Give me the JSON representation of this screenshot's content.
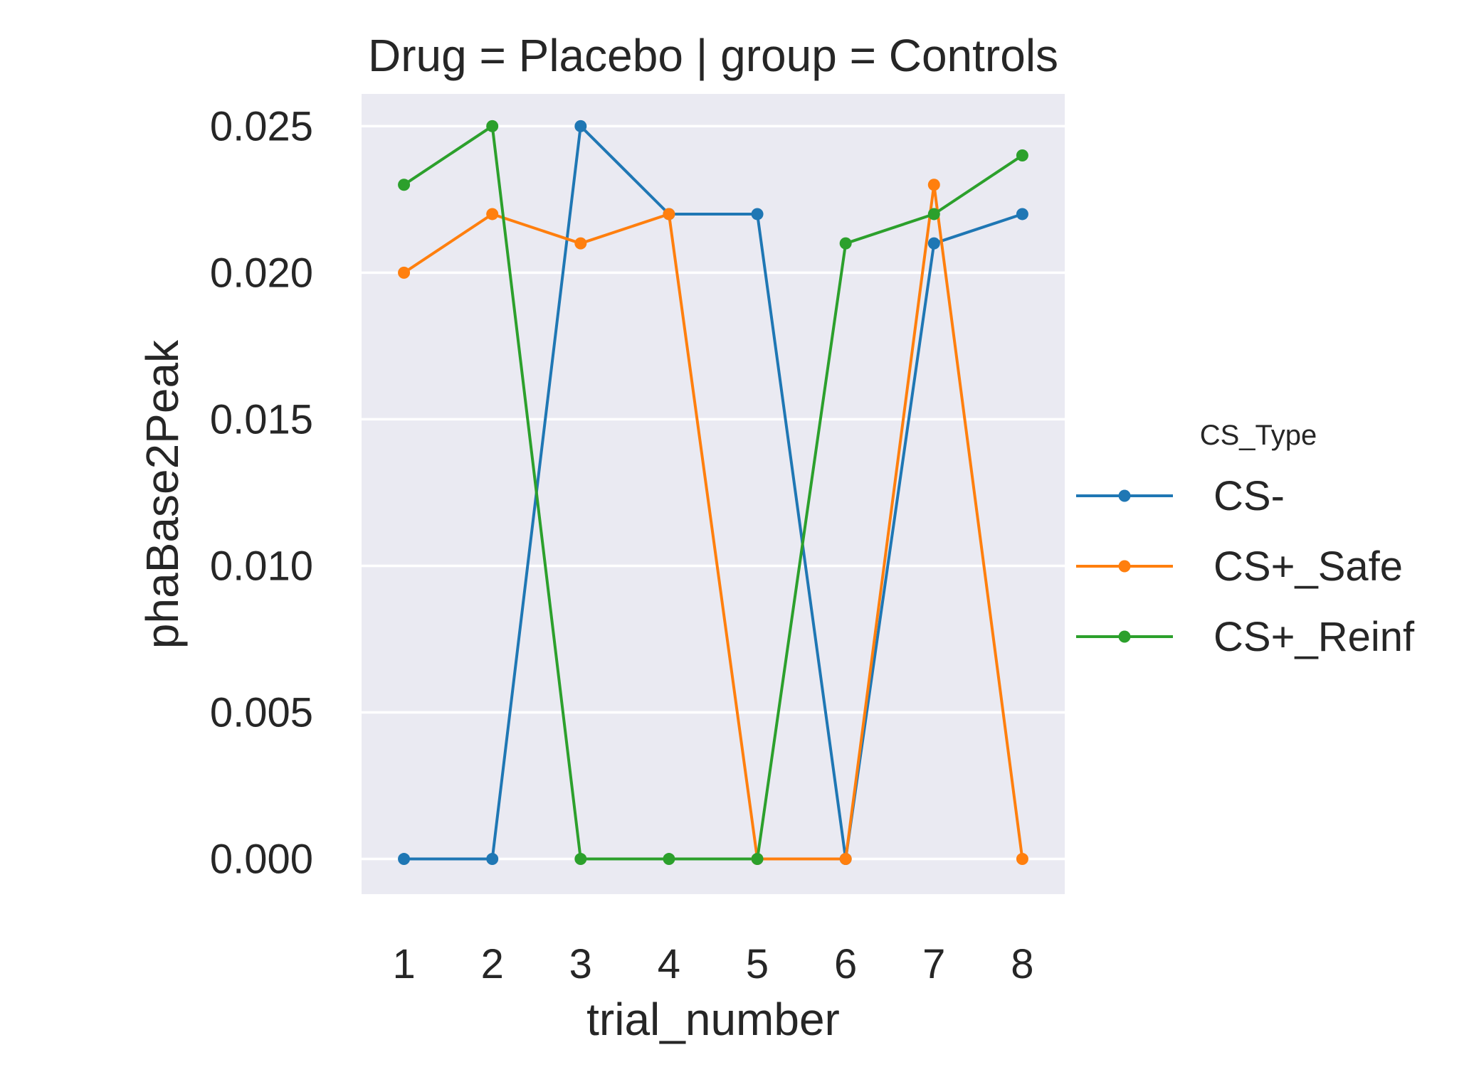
{
  "chart_data": {
    "type": "line",
    "title": "Drug = Placebo | group = Controls",
    "xlabel": "trial_number",
    "ylabel": "phaBase2Peak",
    "x": [
      1,
      2,
      3,
      4,
      5,
      6,
      7,
      8
    ],
    "xticks": [
      "1",
      "2",
      "3",
      "4",
      "5",
      "6",
      "7",
      "8"
    ],
    "yticks": [
      "0.000",
      "0.005",
      "0.010",
      "0.015",
      "0.020",
      "0.025"
    ],
    "ytick_values": [
      0,
      0.005,
      0.01,
      0.015,
      0.02,
      0.025
    ],
    "ylim": [
      -0.0012,
      0.0261
    ],
    "xlim": [
      0.52,
      8.48
    ],
    "grid": true,
    "legend": {
      "title": "CS_Type",
      "placement": "right"
    },
    "series": [
      {
        "name": "CS-",
        "color": "#1f77b4",
        "values": [
          0.0,
          0.0,
          0.025,
          0.022,
          0.022,
          0.0,
          0.021,
          0.022
        ]
      },
      {
        "name": "CS+_Safe",
        "color": "#ff7f0e",
        "values": [
          0.02,
          0.022,
          0.021,
          0.022,
          0.0,
          0.0,
          0.023,
          0.0
        ]
      },
      {
        "name": "CS+_Reinf",
        "color": "#2ca02c",
        "values": [
          0.023,
          0.025,
          0.0,
          0.0,
          0.0,
          0.021,
          0.022,
          0.024
        ]
      }
    ],
    "style": {
      "plot_background": "#eaeaf2",
      "grid_color": "#ffffff"
    }
  }
}
